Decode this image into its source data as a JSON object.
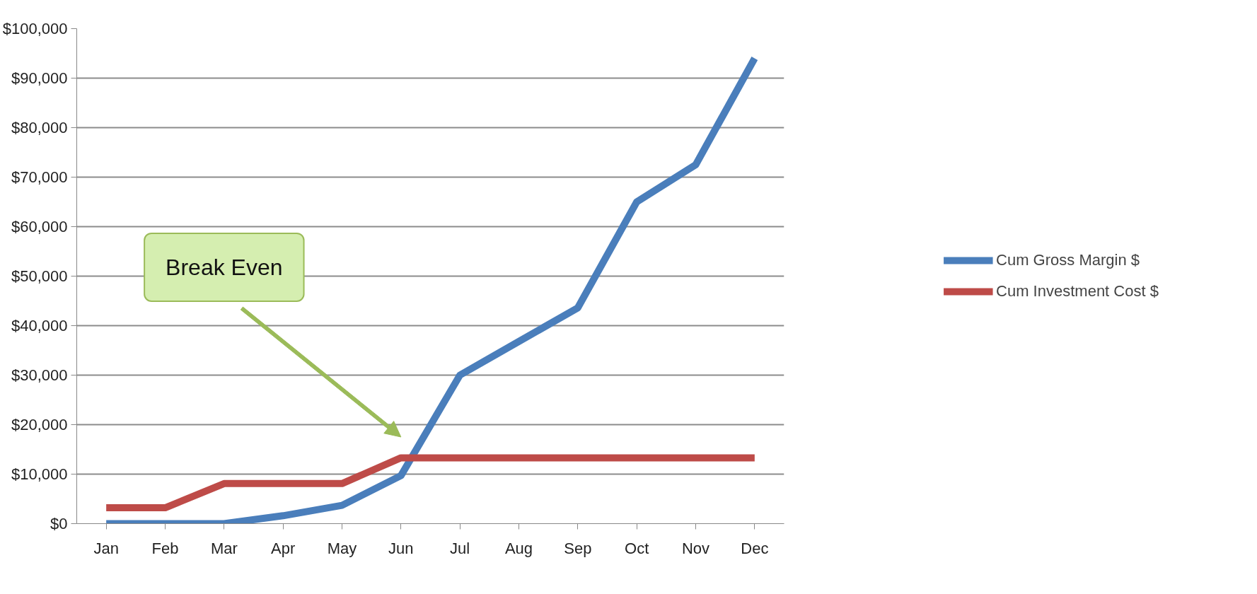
{
  "chart_data": {
    "type": "line",
    "categories": [
      "Jan",
      "Feb",
      "Mar",
      "Apr",
      "May",
      "Jun",
      "Jul",
      "Aug",
      "Sep",
      "Oct",
      "Nov",
      "Dec"
    ],
    "series": [
      {
        "name": "Cum Gross Margin $",
        "color": "#4a7ebb",
        "values": [
          0,
          0,
          0,
          1600,
          3700,
          9700,
          30000,
          36800,
          43600,
          65000,
          72500,
          94000
        ]
      },
      {
        "name": "Cum Investment Cost $",
        "color": "#be4b48",
        "values": [
          3200,
          3200,
          8100,
          8100,
          8100,
          13300,
          13300,
          13300,
          13300,
          13300,
          13300,
          13300
        ]
      }
    ],
    "ylim": [
      0,
      100000
    ],
    "yticks": [
      {
        "value": 0,
        "label": "$0"
      },
      {
        "value": 10000,
        "label": "$10,000"
      },
      {
        "value": 20000,
        "label": "$20,000"
      },
      {
        "value": 30000,
        "label": "$30,000"
      },
      {
        "value": 40000,
        "label": "$40,000"
      },
      {
        "value": 50000,
        "label": "$50,000"
      },
      {
        "value": 60000,
        "label": "$60,000"
      },
      {
        "value": 70000,
        "label": "$70,000"
      },
      {
        "value": 80000,
        "label": "$80,000"
      },
      {
        "value": 90000,
        "label": "$90,000"
      },
      {
        "value": 100000,
        "label": "$100,000"
      }
    ],
    "annotations": [
      "Break Even"
    ],
    "grid": "y",
    "legend": "right",
    "marker": "none",
    "line_style": "solid"
  }
}
